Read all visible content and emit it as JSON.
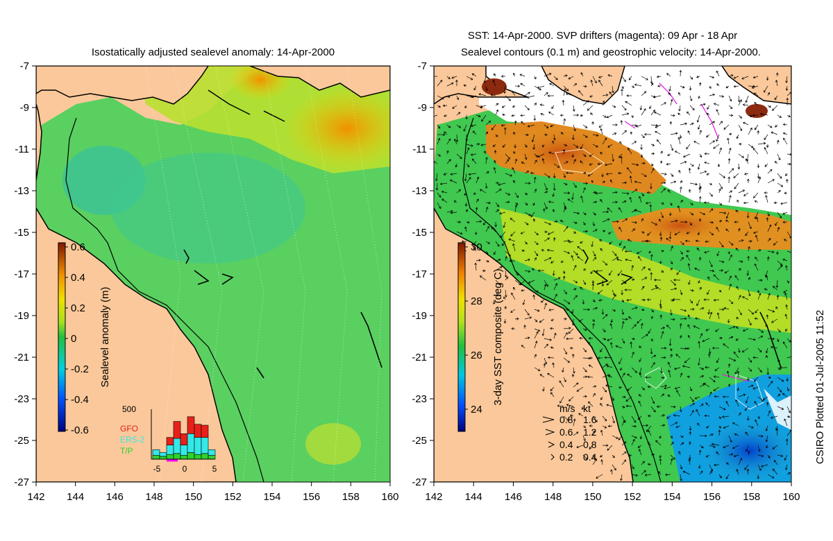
{
  "left_panel": {
    "title": "Isostatically adjusted sealevel anomaly: 14-Apr-2000",
    "colorbar": {
      "label": "Sealevel anomaly (m)",
      "ticks": [
        "0.6",
        "0.4",
        "0.2",
        "0",
        "-0.2",
        "-0.4",
        "-0.6"
      ]
    },
    "histogram": {
      "max_label": "500",
      "legend": [
        "GFO",
        "ERS-2",
        "T/P"
      ],
      "legend_colors": [
        "#e8201a",
        "#34e8e8",
        "#2fd12f"
      ],
      "x_ticks": [
        "-5",
        "0",
        "5"
      ],
      "bars": [
        {
          "tp": 40,
          "ers": 60,
          "gfo": 0
        },
        {
          "tp": 30,
          "ers": 40,
          "gfo": 0
        },
        {
          "tp": 50,
          "ers": 100,
          "gfo": 80
        },
        {
          "tp": 60,
          "ers": 160,
          "gfo": 180
        },
        {
          "tp": 40,
          "ers": 110,
          "gfo": 120
        },
        {
          "tp": 70,
          "ers": 200,
          "gfo": 180
        },
        {
          "tp": 50,
          "ers": 180,
          "gfo": 140
        },
        {
          "tp": 60,
          "ers": 170,
          "gfo": 130
        },
        {
          "tp": 40,
          "ers": 60,
          "gfo": 0
        }
      ]
    }
  },
  "right_panel": {
    "title_line1": "SST: 14-Apr-2000. SVP drifters (magenta): 09 Apr - 18 Apr",
    "title_line2": "Sealevel contours (0.1 m) and geostrophic velocity: 14-Apr-2000.",
    "colorbar": {
      "label": "3-day SST composite (deg C)",
      "ticks": [
        "30",
        "28",
        "26",
        "24"
      ]
    },
    "speed_legend": {
      "header_ms": "m/s",
      "header_kt": "kt",
      "rows": [
        {
          "ms": "0.8",
          "kt": "1.6"
        },
        {
          "ms": "0.6",
          "kt": "1.2"
        },
        {
          "ms": "0.4",
          "kt": "0.8"
        },
        {
          "ms": "0.2",
          "kt": "0.4"
        }
      ]
    }
  },
  "axes": {
    "y_ticks": [
      "-7",
      "-9",
      "-11",
      "-13",
      "-15",
      "-17",
      "-19",
      "-21",
      "-23",
      "-25",
      "-27"
    ],
    "x_ticks": [
      "142",
      "144",
      "146",
      "148",
      "150",
      "152",
      "154",
      "156",
      "158",
      "160"
    ],
    "lon_range": [
      142,
      160
    ],
    "lat_range": [
      -27,
      -7
    ]
  },
  "side_label": "CSIRO Plotted 01-Jul-2005 11:52",
  "colors": {
    "land": "#fac89a",
    "coast": "#000000",
    "arrows": "#000000"
  }
}
